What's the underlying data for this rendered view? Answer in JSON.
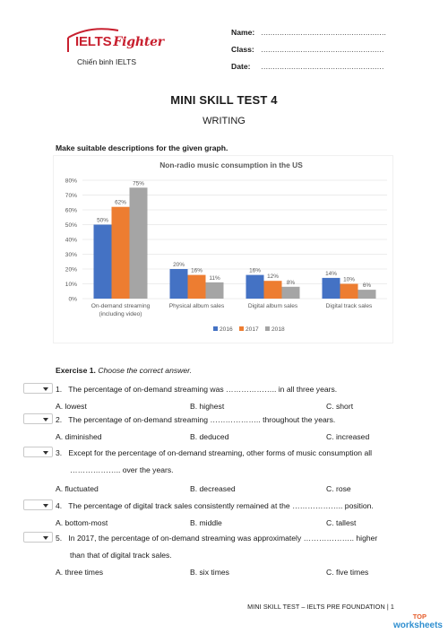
{
  "logo": {
    "brand_main": "IELTS",
    "brand_italic": "Fighter",
    "tagline": "Chiến binh IELTS"
  },
  "fields": [
    {
      "label": "Name:",
      "dots": "......................................................"
    },
    {
      "label": "Class:",
      "dots": "....................................................."
    },
    {
      "label": "Date:",
      "dots": "....................................................."
    }
  ],
  "title": "MINI SKILL TEST 4",
  "subtitle": "WRITING",
  "instruction": "Make suitable descriptions for the given graph.",
  "chart_data": {
    "type": "bar",
    "title": "Non-radio music consumption in the US",
    "categories": [
      "On-demand streaming",
      "Physical album sales",
      "Digital album sales",
      "Digital track sales"
    ],
    "category_sublabels": [
      "(including video)",
      "",
      "",
      ""
    ],
    "ylim": [
      0,
      80
    ],
    "yticks": [
      "0%",
      "10%",
      "20%",
      "30%",
      "40%",
      "50%",
      "60%",
      "70%",
      "80%"
    ],
    "series": [
      {
        "name": "2016",
        "color": "#4472c4",
        "values": [
          50,
          20,
          16,
          14
        ],
        "labels": [
          "50%",
          "20%",
          "16%",
          "14%"
        ]
      },
      {
        "name": "2017",
        "color": "#ed7d31",
        "values": [
          62,
          16,
          12,
          10
        ],
        "labels": [
          "62%",
          "16%",
          "12%",
          "10%"
        ]
      },
      {
        "name": "2018",
        "color": "#a5a5a5",
        "values": [
          75,
          11,
          8,
          6
        ],
        "labels": [
          "75%",
          "11%",
          "8%",
          "6%"
        ]
      }
    ],
    "legend": "bottom",
    "grid": true
  },
  "exercise": {
    "label": "Exercise 1.",
    "instruction": "Choose the correct answer.",
    "questions": [
      {
        "num": "1.",
        "text": "The percentage of on-demand streaming was ……………….. in all three years.",
        "cont": "",
        "options": [
          "A. lowest",
          "B. highest",
          "C. short"
        ]
      },
      {
        "num": "2.",
        "text": "The percentage of on-demand streaming ……………….. throughout the years.",
        "cont": "",
        "options": [
          "A. diminished",
          "B. deduced",
          "C. increased"
        ]
      },
      {
        "num": "3.",
        "text": "Except for the percentage of on-demand streaming, other forms of music consumption all",
        "cont": "……………….. over the years.",
        "options": [
          "A. fluctuated",
          "B. decreased",
          "C. rose"
        ]
      },
      {
        "num": "4.",
        "text": "The percentage of digital track sales consistently remained at the ……………….. position.",
        "cont": "",
        "options": [
          "A. bottom-most",
          "B. middle",
          "C. tallest"
        ]
      },
      {
        "num": "5.",
        "text": "In 2017, the percentage of on-demand streaming was approximately ……………….. higher",
        "cont": "than that of digital track sales.",
        "options": [
          "A. three times",
          "B. six times",
          "C. five times"
        ]
      }
    ]
  },
  "footer": "MINI SKILL TEST – IELTS PRE FOUNDATION | 1",
  "brand_badge": {
    "line1": "TOP",
    "line2": "worksheets"
  }
}
